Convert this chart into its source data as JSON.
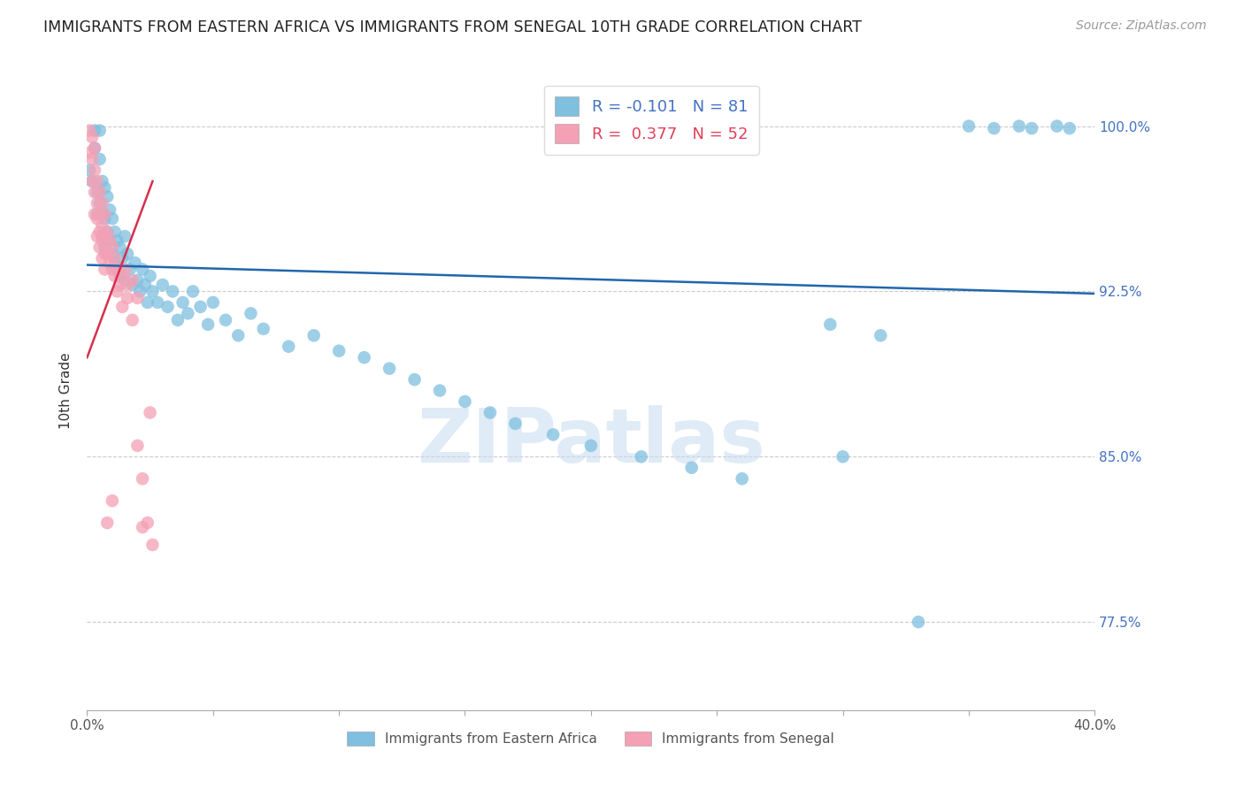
{
  "title": "IMMIGRANTS FROM EASTERN AFRICA VS IMMIGRANTS FROM SENEGAL 10TH GRADE CORRELATION CHART",
  "source": "Source: ZipAtlas.com",
  "ylabel": "10th Grade",
  "y_ticks": [
    0.775,
    0.85,
    0.925,
    1.0
  ],
  "y_tick_labels": [
    "77.5%",
    "85.0%",
    "92.5%",
    "100.0%"
  ],
  "xlim": [
    0.0,
    0.4
  ],
  "ylim": [
    0.735,
    1.025
  ],
  "blue_R": -0.101,
  "blue_N": 81,
  "pink_R": 0.377,
  "pink_N": 52,
  "blue_color": "#7fbfdf",
  "pink_color": "#f4a0b5",
  "blue_line_color": "#2166ac",
  "pink_line_color": "#d6304d",
  "watermark_text": "ZIPatlas",
  "watermark_color": "#c6dbef",
  "legend_label_blue": "Immigrants from Eastern Africa",
  "legend_label_pink": "Immigrants from Senegal",
  "blue_scatter_x": [
    0.001,
    0.002,
    0.003,
    0.003,
    0.004,
    0.004,
    0.005,
    0.005,
    0.005,
    0.006,
    0.006,
    0.006,
    0.007,
    0.007,
    0.007,
    0.008,
    0.008,
    0.009,
    0.009,
    0.01,
    0.01,
    0.011,
    0.011,
    0.012,
    0.012,
    0.013,
    0.013,
    0.014,
    0.015,
    0.015,
    0.016,
    0.017,
    0.018,
    0.019,
    0.02,
    0.021,
    0.022,
    0.023,
    0.024,
    0.025,
    0.026,
    0.028,
    0.03,
    0.032,
    0.034,
    0.036,
    0.038,
    0.04,
    0.042,
    0.045,
    0.048,
    0.05,
    0.055,
    0.06,
    0.065,
    0.07,
    0.08,
    0.09,
    0.1,
    0.11,
    0.12,
    0.13,
    0.14,
    0.15,
    0.16,
    0.17,
    0.185,
    0.2,
    0.22,
    0.24,
    0.26,
    0.3,
    0.35,
    0.36,
    0.37,
    0.375,
    0.385,
    0.39,
    0.295,
    0.315,
    0.33
  ],
  "blue_scatter_y": [
    0.98,
    0.975,
    0.998,
    0.99,
    0.97,
    0.96,
    0.998,
    0.985,
    0.965,
    0.975,
    0.96,
    0.95,
    0.972,
    0.958,
    0.945,
    0.968,
    0.952,
    0.962,
    0.948,
    0.958,
    0.942,
    0.952,
    0.938,
    0.948,
    0.935,
    0.945,
    0.932,
    0.94,
    0.95,
    0.93,
    0.942,
    0.935,
    0.928,
    0.938,
    0.93,
    0.925,
    0.935,
    0.928,
    0.92,
    0.932,
    0.925,
    0.92,
    0.928,
    0.918,
    0.925,
    0.912,
    0.92,
    0.915,
    0.925,
    0.918,
    0.91,
    0.92,
    0.912,
    0.905,
    0.915,
    0.908,
    0.9,
    0.905,
    0.898,
    0.895,
    0.89,
    0.885,
    0.88,
    0.875,
    0.87,
    0.865,
    0.86,
    0.855,
    0.85,
    0.845,
    0.84,
    0.85,
    1.0,
    0.999,
    1.0,
    0.999,
    1.0,
    0.999,
    0.91,
    0.905,
    0.775
  ],
  "pink_scatter_x": [
    0.001,
    0.001,
    0.002,
    0.002,
    0.002,
    0.003,
    0.003,
    0.003,
    0.003,
    0.004,
    0.004,
    0.004,
    0.004,
    0.005,
    0.005,
    0.005,
    0.005,
    0.006,
    0.006,
    0.006,
    0.006,
    0.007,
    0.007,
    0.007,
    0.007,
    0.008,
    0.008,
    0.009,
    0.009,
    0.01,
    0.01,
    0.011,
    0.011,
    0.012,
    0.013,
    0.014,
    0.015,
    0.016,
    0.018,
    0.02,
    0.022,
    0.025,
    0.012,
    0.014,
    0.016,
    0.018,
    0.02,
    0.022,
    0.024,
    0.026,
    0.01,
    0.008
  ],
  "pink_scatter_y": [
    0.998,
    0.988,
    0.995,
    0.985,
    0.975,
    0.99,
    0.98,
    0.97,
    0.96,
    0.975,
    0.965,
    0.958,
    0.95,
    0.97,
    0.96,
    0.952,
    0.945,
    0.965,
    0.955,
    0.948,
    0.94,
    0.96,
    0.95,
    0.942,
    0.935,
    0.952,
    0.942,
    0.948,
    0.938,
    0.945,
    0.935,
    0.94,
    0.932,
    0.935,
    0.928,
    0.932,
    0.935,
    0.928,
    0.93,
    0.922,
    0.818,
    0.87,
    0.925,
    0.918,
    0.922,
    0.912,
    0.855,
    0.84,
    0.82,
    0.81,
    0.83,
    0.82
  ]
}
